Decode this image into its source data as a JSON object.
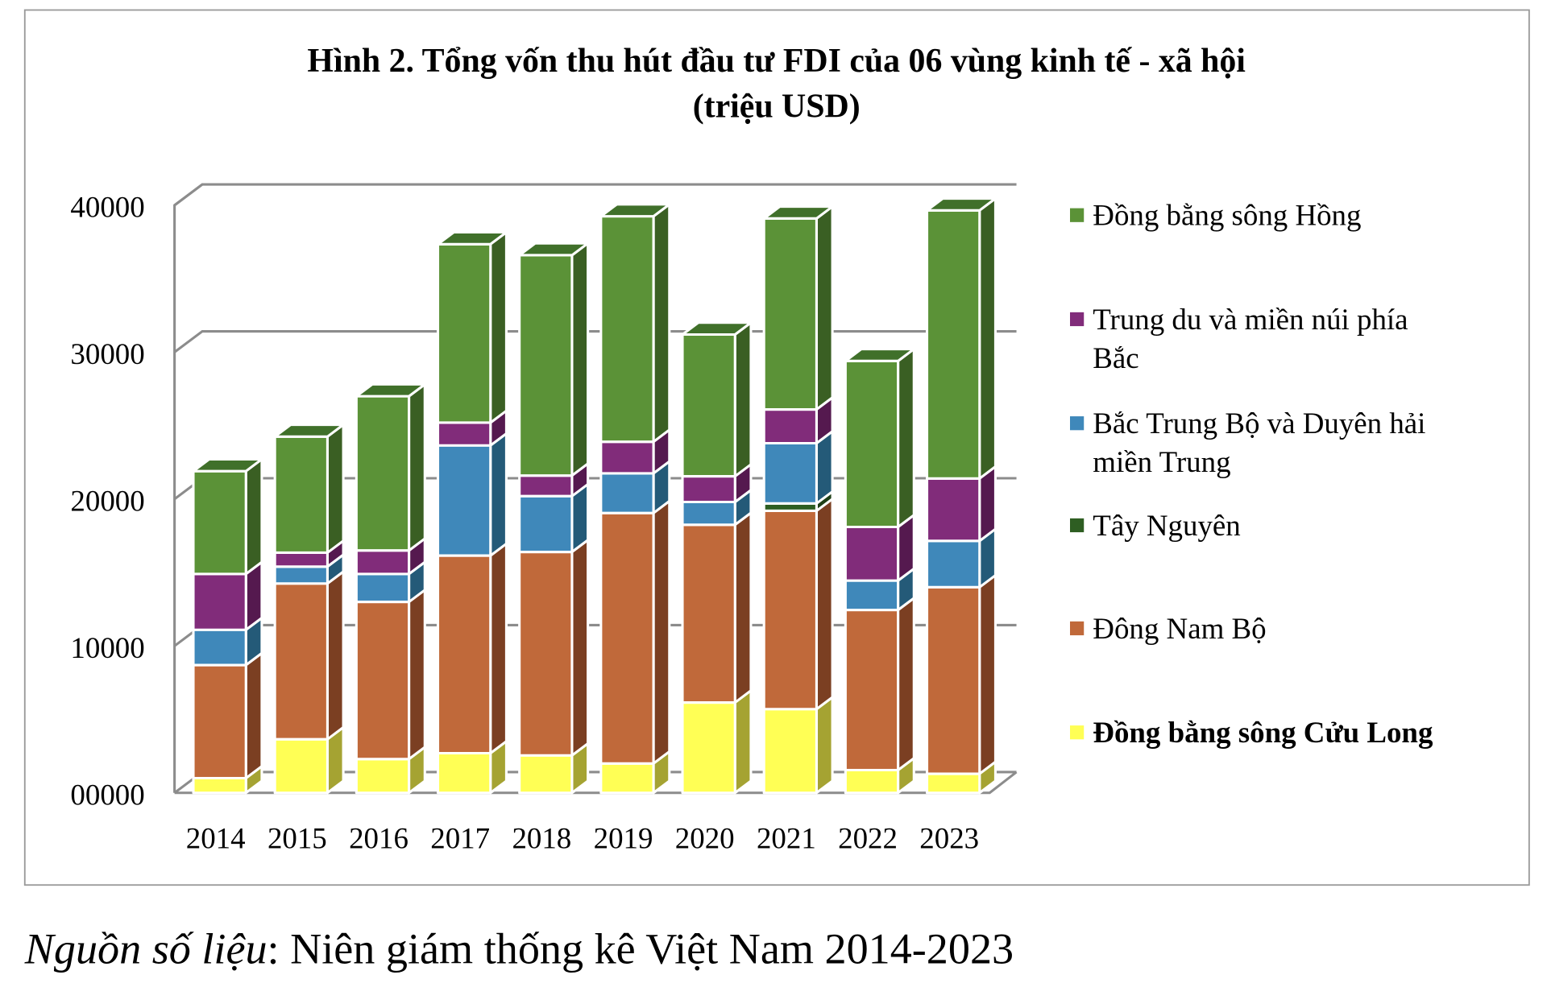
{
  "chart_data": {
    "type": "bar",
    "stacked": true,
    "three_d": true,
    "title": "Hình 2. Tổng vốn thu hút đầu tư FDI của 06 vùng kinh tế - xã hội",
    "subtitle": "(triệu USD)",
    "xlabel": "",
    "ylabel": "",
    "ylim": [
      0,
      40000
    ],
    "yticks": [
      "00000",
      "10000",
      "20000",
      "30000",
      "40000"
    ],
    "ytick_values": [
      0,
      10000,
      20000,
      30000,
      40000
    ],
    "grid": true,
    "legend_position": "right",
    "categories": [
      "2014",
      "2015",
      "2016",
      "2017",
      "2018",
      "2019",
      "2020",
      "2021",
      "2022",
      "2023"
    ],
    "series": [
      {
        "name": "Đồng bằng sông Cửu Long",
        "color": "#FFFF55",
        "side": "#A5A332",
        "values": [
          1000,
          3650,
          2300,
          2700,
          2550,
          2000,
          6150,
          5700,
          1550,
          1300
        ]
      },
      {
        "name": "Đông Nam Bộ",
        "color": "#C0693A",
        "side": "#7B3F22",
        "values": [
          7700,
          10600,
          10700,
          13450,
          13850,
          17050,
          12100,
          13500,
          10900,
          12700
        ]
      },
      {
        "name": "Tây Nguyên",
        "color": "#2E5E22",
        "side": "#1E3F16",
        "values": [
          0,
          0,
          0,
          0,
          0,
          0,
          0,
          500,
          0,
          0
        ]
      },
      {
        "name": "Bắc Trung Bộ và Duyên hải miền Trung",
        "color": "#3F88BA",
        "side": "#245A78",
        "values": [
          2400,
          1150,
          1900,
          7500,
          3800,
          2700,
          1550,
          4100,
          2000,
          3150
        ]
      },
      {
        "name": "Trung du và miền núi phía Bắc",
        "color": "#812C7A",
        "side": "#55194F",
        "values": [
          3800,
          950,
          1600,
          1550,
          1400,
          2150,
          1750,
          2300,
          3650,
          4250
        ]
      },
      {
        "name": "Đồng bằng sông Hồng",
        "color": "#5B9237",
        "side": "#3A5F23",
        "top": "#40702A",
        "values": [
          7000,
          7900,
          10500,
          12150,
          15000,
          15350,
          9650,
          13000,
          11300,
          18250
        ]
      }
    ],
    "legend": [
      {
        "lines": [
          "Đồng bằng sông Hồng"
        ],
        "color": "#5B9237",
        "bold": false
      },
      {
        "lines": [
          "Trung du và miền núi phía",
          "Bắc"
        ],
        "color": "#812C7A",
        "bold": false
      },
      {
        "lines": [
          "Bắc Trung Bộ và Duyên hải",
          "miền Trung"
        ],
        "color": "#3F88BA",
        "bold": false
      },
      {
        "lines": [
          "Tây Nguyên"
        ],
        "color": "#2E5E22",
        "bold": false
      },
      {
        "lines": [
          "Đông Nam Bộ"
        ],
        "color": "#C0693A",
        "bold": false
      },
      {
        "lines": [
          "Đồng bằng sông Cửu Long"
        ],
        "color": "#FFFF55",
        "bold": true
      }
    ]
  },
  "footnote": {
    "label": "Nguồn số liệu",
    "text": ": Niên giám thống kê Việt Nam 2014-2023"
  }
}
